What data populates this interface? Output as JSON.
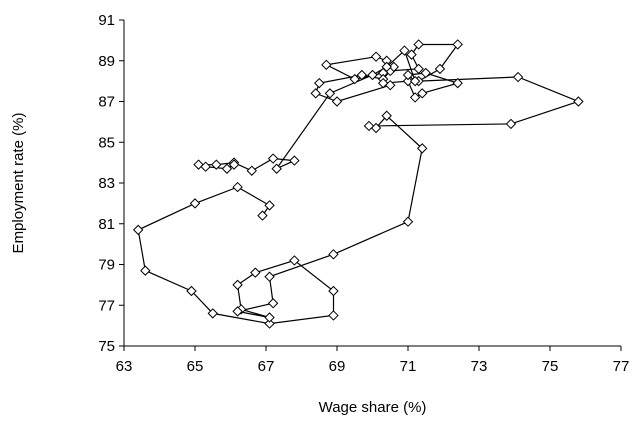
{
  "chart_data": {
    "type": "scatter",
    "xlabel": "Wage share (%)",
    "ylabel": "Employment rate (%)",
    "xlim": [
      63,
      77
    ],
    "ylim": [
      75,
      91
    ],
    "xticks": [
      63,
      65,
      67,
      69,
      71,
      73,
      75,
      77
    ],
    "yticks": [
      75,
      77,
      79,
      81,
      83,
      85,
      87,
      89,
      91
    ],
    "grid": false,
    "legend": "none",
    "connected": true,
    "marker": "diamond",
    "line_color": "#000000",
    "series": [
      {
        "points": [
          [
            66.9,
            81.4
          ],
          [
            67.1,
            81.9
          ],
          [
            66.2,
            82.8
          ],
          [
            65.0,
            82.0
          ],
          [
            63.4,
            80.7
          ],
          [
            63.6,
            78.7
          ],
          [
            64.9,
            77.7
          ],
          [
            65.5,
            76.6
          ],
          [
            67.1,
            76.1
          ],
          [
            68.9,
            76.5
          ],
          [
            68.9,
            77.7
          ],
          [
            67.8,
            79.2
          ],
          [
            66.7,
            78.6
          ],
          [
            66.2,
            78.0
          ],
          [
            66.3,
            76.8
          ],
          [
            67.1,
            76.4
          ],
          [
            66.2,
            76.7
          ],
          [
            67.2,
            77.1
          ],
          [
            67.1,
            78.4
          ],
          [
            68.9,
            79.5
          ],
          [
            71.0,
            81.1
          ],
          [
            71.4,
            84.7
          ],
          [
            70.4,
            86.3
          ],
          [
            70.1,
            85.7
          ],
          [
            69.9,
            85.8
          ],
          [
            73.9,
            85.9
          ],
          [
            75.8,
            87.0
          ],
          [
            74.1,
            88.2
          ],
          [
            71.3,
            88.0
          ],
          [
            71.9,
            88.6
          ],
          [
            72.4,
            89.8
          ],
          [
            71.3,
            89.8
          ],
          [
            71.1,
            89.3
          ],
          [
            71.3,
            88.6
          ],
          [
            70.5,
            88.5
          ],
          [
            70.4,
            89.0
          ],
          [
            70.1,
            89.2
          ],
          [
            68.7,
            88.8
          ],
          [
            69.5,
            88.1
          ],
          [
            70.3,
            88.4
          ],
          [
            70.6,
            88.7
          ],
          [
            70.3,
            88.1
          ],
          [
            69.7,
            88.3
          ],
          [
            68.5,
            87.9
          ],
          [
            68.4,
            87.4
          ],
          [
            69.0,
            87.0
          ],
          [
            70.5,
            87.8
          ],
          [
            70.3,
            87.9
          ],
          [
            71.0,
            88.0
          ],
          [
            71.2,
            87.2
          ],
          [
            71.4,
            87.4
          ],
          [
            72.4,
            87.9
          ],
          [
            71.5,
            88.4
          ],
          [
            71.0,
            88.3
          ],
          [
            71.2,
            88.0
          ],
          [
            70.9,
            89.5
          ],
          [
            70.4,
            88.7
          ],
          [
            70.0,
            88.3
          ],
          [
            68.8,
            87.4
          ],
          [
            67.3,
            83.7
          ],
          [
            67.8,
            84.1
          ],
          [
            67.2,
            84.2
          ],
          [
            66.6,
            83.6
          ],
          [
            66.1,
            84.0
          ],
          [
            65.6,
            83.9
          ],
          [
            65.1,
            83.9
          ],
          [
            65.3,
            83.8
          ],
          [
            65.9,
            83.7
          ],
          [
            66.1,
            83.9
          ]
        ]
      }
    ]
  }
}
